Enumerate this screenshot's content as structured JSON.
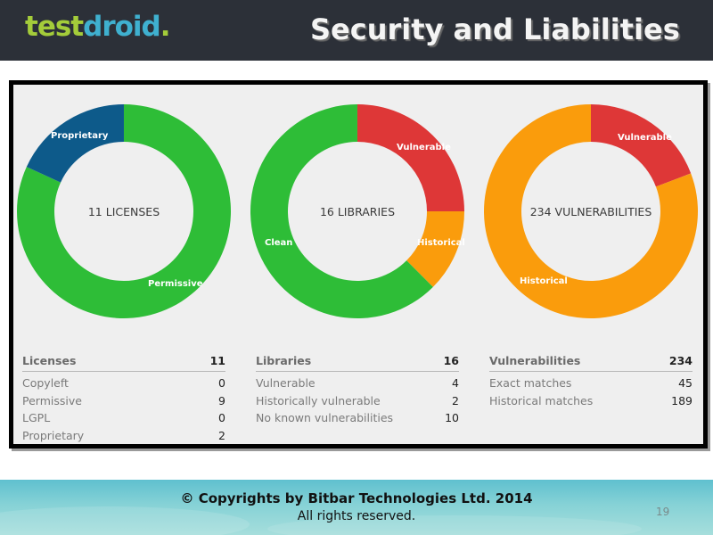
{
  "header": {
    "logo": {
      "part1": "test",
      "part2": "droid",
      "dot": "."
    },
    "title": "Security and Liabilities"
  },
  "colors": {
    "header_bg": "#2c3038",
    "logo_green": "#a4cc3a",
    "logo_blue": "#3fb0cf",
    "green": "#2ebd37",
    "blue": "#0d5a8a",
    "red": "#de3737",
    "orange": "#fa9c0c",
    "panel_bg": "#efefef"
  },
  "chart_data": [
    {
      "type": "pie",
      "donut": true,
      "title": "11 LICENSES",
      "categories": [
        "Permissive",
        "Proprietary"
      ],
      "values": [
        9,
        2
      ],
      "colors": [
        "#2ebd37",
        "#0d5a8a"
      ]
    },
    {
      "type": "pie",
      "donut": true,
      "title": "16 LIBRARIES",
      "categories": [
        "Vulnerable",
        "Historical",
        "Clean"
      ],
      "values": [
        4,
        2,
        10
      ],
      "colors": [
        "#de3737",
        "#fa9c0c",
        "#2ebd37"
      ]
    },
    {
      "type": "pie",
      "donut": true,
      "title": "234 VULNERABILITIES",
      "categories": [
        "Vulnerable",
        "Historical"
      ],
      "values": [
        45,
        189
      ],
      "colors": [
        "#de3737",
        "#fa9c0c"
      ]
    }
  ],
  "donuts": {
    "licenses": {
      "center": "11 LICENSES",
      "labels": {
        "proprietary": "Proprietary",
        "permissive": "Permissive"
      }
    },
    "libraries": {
      "center": "16 LIBRARIES",
      "labels": {
        "vulnerable": "Vulnerable",
        "historical": "Historical",
        "clean": "Clean"
      }
    },
    "vulnerabilities": {
      "center": "234 VULNERABILITIES",
      "labels": {
        "vulnerable": "Vulnerable",
        "historical": "Historical"
      }
    }
  },
  "tables": {
    "licenses": {
      "header": {
        "label": "Licenses",
        "value": "11"
      },
      "rows": [
        {
          "label": "Copyleft",
          "value": "0"
        },
        {
          "label": "Permissive",
          "value": "9"
        },
        {
          "label": "LGPL",
          "value": "0"
        },
        {
          "label": "Proprietary",
          "value": "2"
        }
      ]
    },
    "libraries": {
      "header": {
        "label": "Libraries",
        "value": "16"
      },
      "rows": [
        {
          "label": "Vulnerable",
          "value": "4"
        },
        {
          "label": "Historically vulnerable",
          "value": "2"
        },
        {
          "label": "No known vulnerabilities",
          "value": "10"
        }
      ]
    },
    "vulnerabilities": {
      "header": {
        "label": "Vulnerabilities",
        "value": "234"
      },
      "rows": [
        {
          "label": "Exact matches",
          "value": "45"
        },
        {
          "label": "Historical matches",
          "value": "189"
        }
      ]
    }
  },
  "footer": {
    "copyright": "© Copyrights by Bitbar Technologies Ltd. 2014",
    "rights": "All rights reserved.",
    "page_number": "19"
  }
}
